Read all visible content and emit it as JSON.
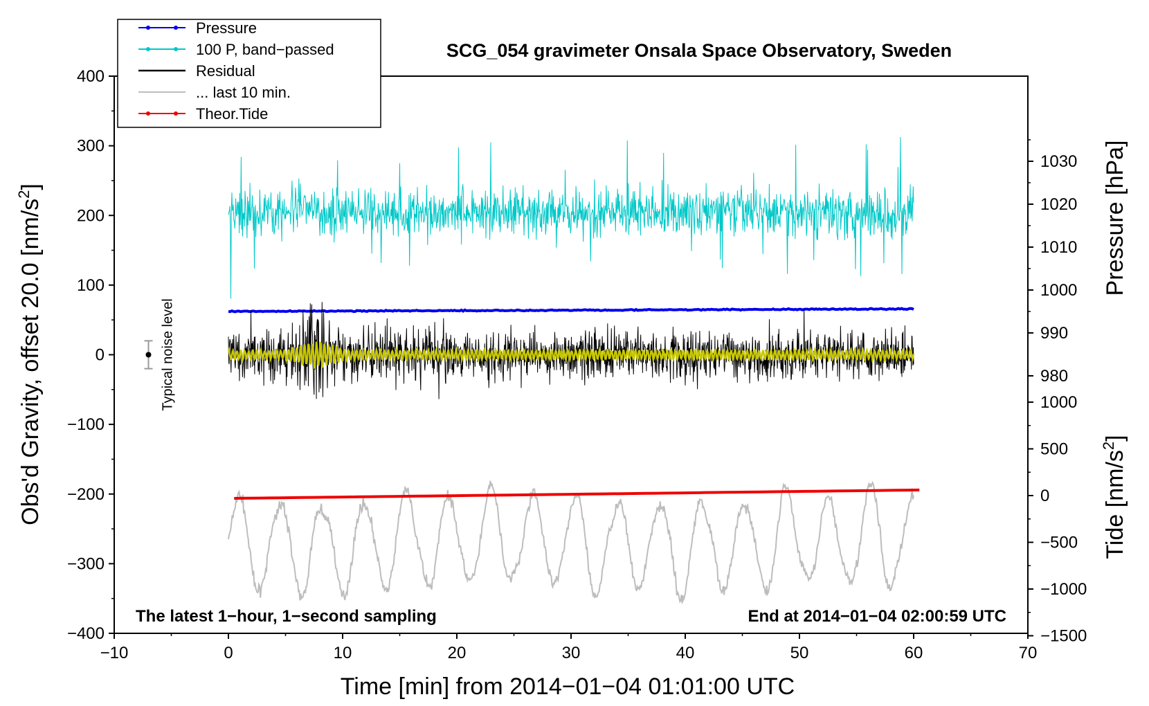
{
  "chart_data": {
    "type": "line",
    "title": "SCG_054 gravimeter Onsala Space Observatory, Sweden",
    "xlabel": "Time [min] from 2014−01−04 01:01:00 UTC",
    "ylabel": "Obs'd Gravity, offset 20.0 [nm/s",
    "ylabel_sup": "2",
    "ylabel_end": "]",
    "y2label": "Pressure [hPa]",
    "y3label": "Tide [nm/s",
    "y3label_sup": "2",
    "y3label_end": "]",
    "xlim": [
      -10,
      70
    ],
    "ylim": [
      -400,
      400
    ],
    "pressure_axis": {
      "ticks": [
        980,
        990,
        1000,
        1010,
        1020,
        1030
      ],
      "tick_labels": [
        "980",
        "990",
        "1000",
        "1010",
        "1020",
        "1030"
      ]
    },
    "tide_axis": {
      "ticks": [
        -1500,
        -1000,
        -500,
        0,
        500,
        1000
      ],
      "tick_labels": [
        "−1500",
        "−1000",
        "−500",
        "0",
        "500",
        "1000"
      ]
    },
    "x_ticks": [
      -10,
      0,
      10,
      20,
      30,
      40,
      50,
      60,
      70
    ],
    "x_tick_labels": [
      "−10",
      "0",
      "10",
      "20",
      "30",
      "40",
      "50",
      "60",
      "70"
    ],
    "y_ticks": [
      -400,
      -300,
      -200,
      -100,
      0,
      100,
      200,
      300,
      400
    ],
    "y_tick_labels": [
      "−400",
      "−300",
      "−200",
      "−100",
      "0",
      "100",
      "200",
      "300",
      "400"
    ],
    "annotations": {
      "bottom_left": "The latest 1−hour, 1−second sampling",
      "bottom_right": "End at 2014−01−04 02:00:59 UTC",
      "noise_label": "Typical noise level"
    },
    "noise_bar": {
      "x": -7,
      "y": 0,
      "half_range": 20
    },
    "legend": [
      {
        "label": "Pressure",
        "color": "#0000ee",
        "marker": true
      },
      {
        "label": "100 P, band−passed",
        "color": "#00c8c8",
        "marker": true
      },
      {
        "label": "Residual",
        "color": "#000000",
        "marker": false
      },
      {
        "label": "... last 10 min.",
        "color": "#bdbdbd",
        "marker": false
      },
      {
        "label": "Theor.Tide",
        "color": "#ee0000",
        "marker": true
      }
    ],
    "series": [
      {
        "name": "Pressure",
        "color": "#0000ee",
        "x_range": [
          0,
          60
        ],
        "start": 995.0,
        "end": 995.6,
        "units": "hPa"
      },
      {
        "name": "100 P, band−passed",
        "color": "#00c8c8",
        "x_range": [
          0,
          60
        ],
        "center": 205,
        "amplitude": 30,
        "units": "nm/s2"
      },
      {
        "name": "Residual",
        "color": "#000000",
        "x_range": [
          0,
          60
        ],
        "center": 0,
        "amplitude": 60,
        "units": "nm/s2"
      },
      {
        "name": "Residual (smoothed)",
        "color": "#c8c800",
        "x_range": [
          0,
          60
        ],
        "center": 0,
        "amplitude": 8,
        "units": "nm/s2"
      },
      {
        "name": "... last 10 min.",
        "color": "#bdbdbd",
        "x_range": [
          0,
          60
        ],
        "center": -270,
        "amplitude": 70,
        "units": "nm/s2"
      },
      {
        "name": "Theor.Tide",
        "color": "#ee0000",
        "x_range": [
          0.5,
          60.5
        ],
        "start": -30,
        "end": 60,
        "units": "nm/s2"
      }
    ]
  }
}
